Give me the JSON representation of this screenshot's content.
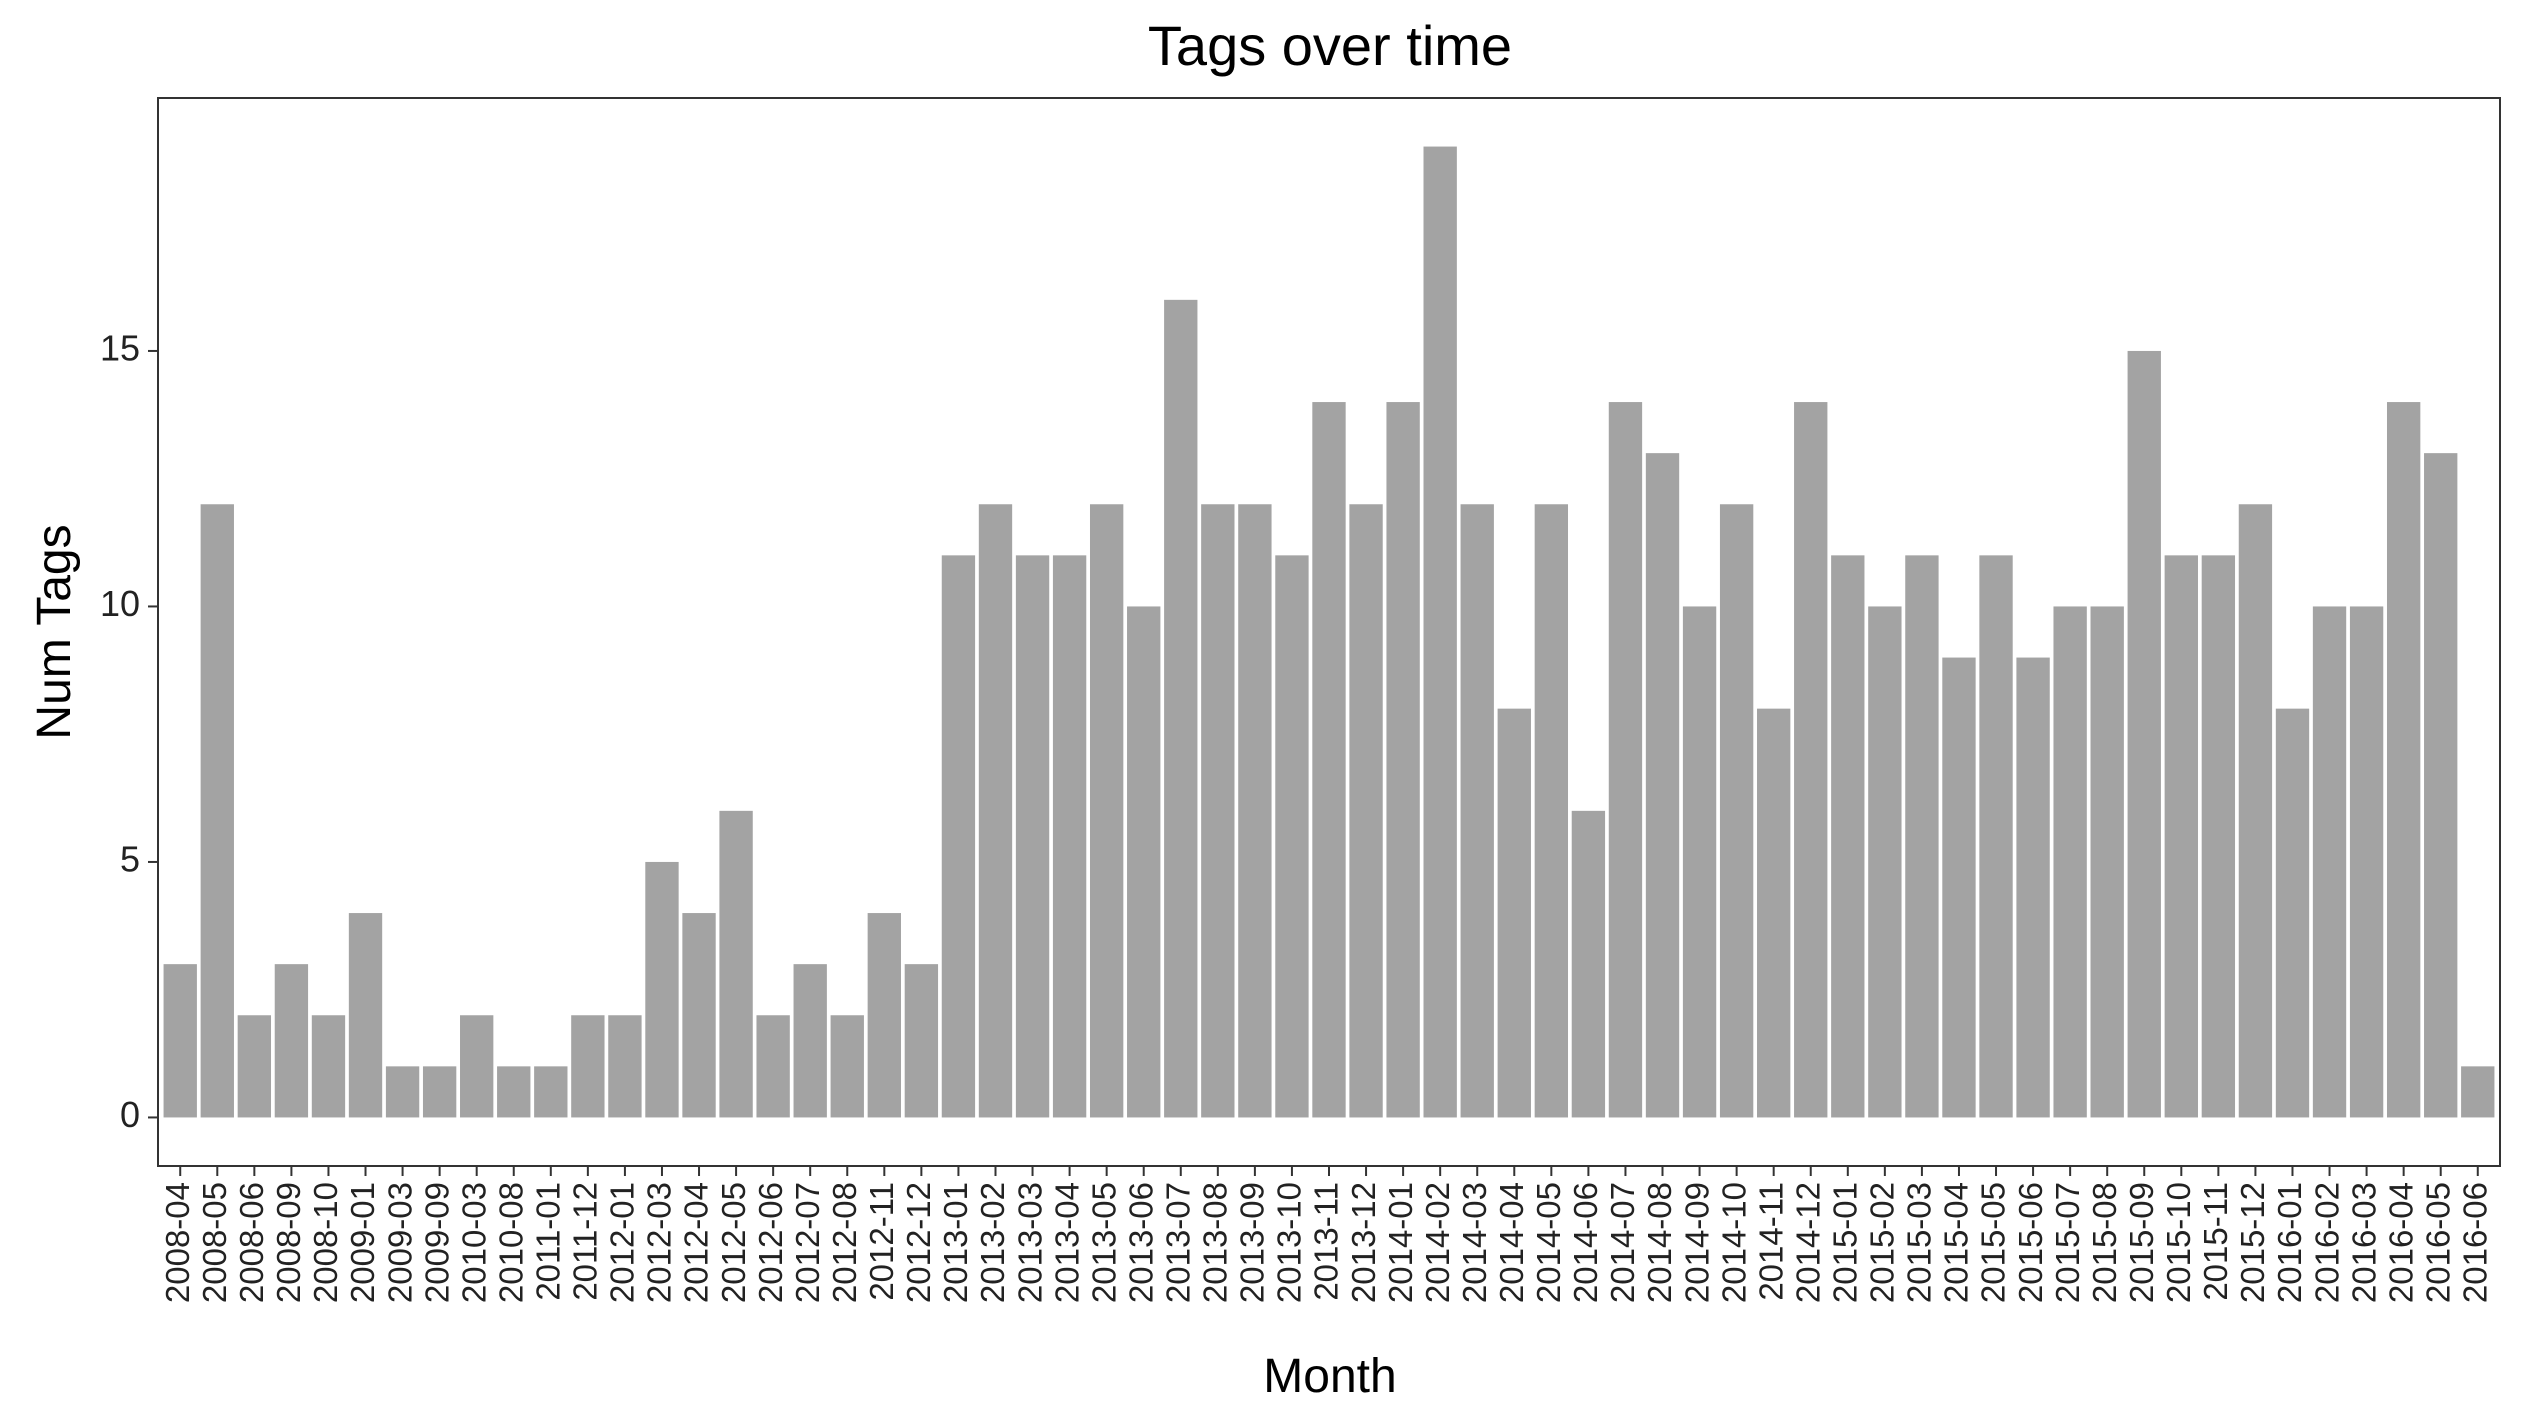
{
  "chart_data": {
    "type": "bar",
    "title": "Tags over time",
    "xlabel": "Month",
    "ylabel": "Num Tags",
    "ylim": [
      -0.95,
      19.95
    ],
    "yticks": [
      0,
      5,
      10,
      15
    ],
    "grid": false,
    "bar_color": "#a3a3a3",
    "categories": [
      "2008-04",
      "2008-05",
      "2008-06",
      "2008-09",
      "2008-10",
      "2009-01",
      "2009-03",
      "2009-09",
      "2010-03",
      "2010-08",
      "2011-01",
      "2011-12",
      "2012-01",
      "2012-03",
      "2012-04",
      "2012-05",
      "2012-06",
      "2012-07",
      "2012-08",
      "2012-11",
      "2012-12",
      "2013-01",
      "2013-02",
      "2013-03",
      "2013-04",
      "2013-05",
      "2013-06",
      "2013-07",
      "2013-08",
      "2013-09",
      "2013-10",
      "2013-11",
      "2013-12",
      "2014-01",
      "2014-02",
      "2014-03",
      "2014-04",
      "2014-05",
      "2014-06",
      "2014-07",
      "2014-08",
      "2014-09",
      "2014-10",
      "2014-11",
      "2014-12",
      "2015-01",
      "2015-02",
      "2015-03",
      "2015-04",
      "2015-05",
      "2015-06",
      "2015-07",
      "2015-08",
      "2015-09",
      "2015-10",
      "2015-11",
      "2015-12",
      "2016-01",
      "2016-02",
      "2016-03",
      "2016-04",
      "2016-05",
      "2016-06"
    ],
    "values": [
      3,
      12,
      2,
      3,
      2,
      4,
      1,
      1,
      2,
      1,
      1,
      2,
      2,
      5,
      4,
      6,
      2,
      3,
      2,
      4,
      3,
      11,
      12,
      11,
      11,
      12,
      10,
      16,
      12,
      12,
      11,
      14,
      12,
      14,
      19,
      12,
      8,
      12,
      6,
      14,
      13,
      10,
      12,
      8,
      14,
      11,
      10,
      11,
      9,
      11,
      9,
      10,
      10,
      15,
      11,
      11,
      12,
      8,
      10,
      10,
      14,
      13,
      1
    ]
  }
}
